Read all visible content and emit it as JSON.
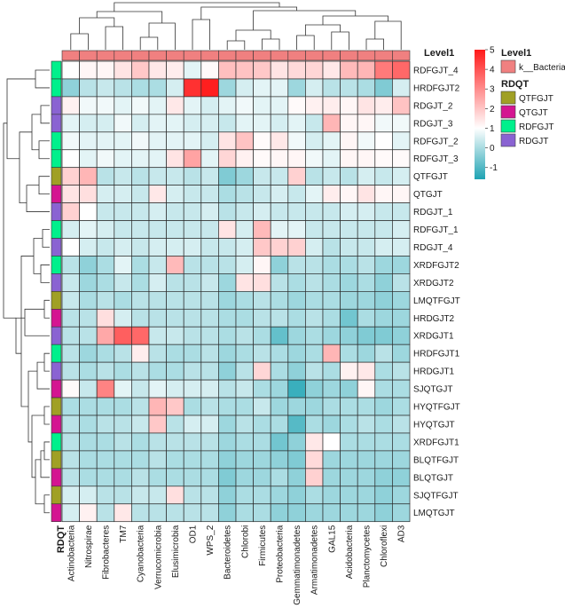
{
  "chart_data": {
    "type": "heatmap",
    "columns": [
      "Actinobacteria",
      "Nitrospirae",
      "Fibrobacteres",
      "TM7",
      "Cyanobacteria",
      "Verrucomicrobia",
      "Elusimicrobia",
      "OD1",
      "WPS_2",
      "Bacteroidetes",
      "Chlorobi",
      "Firmicutes",
      "Proteobacteria",
      "Gemmatimonadetes",
      "Armatimonadetes",
      "GAL15",
      "Acidobacteria",
      "Planctomycetes",
      "Chloroflexi",
      "AD3"
    ],
    "rows": [
      "RDFGJT_4",
      "HRDFGJT2",
      "RDGJT_2",
      "RDGJT_3",
      "RDFGJT_2",
      "RDFGJT_3",
      "QTFGJT",
      "QTGJT",
      "RDGJT_1",
      "RDFGJT_1",
      "RDGJT_4",
      "XRDFGJT2",
      "XRDGJT2",
      "LMQTFGJT",
      "HRDGJT2",
      "XRDGJT1",
      "HRDFGJT1",
      "HRDGJT1",
      "SJQTGJT",
      "HYQTFGJT",
      "HYQTGJT",
      "XRDFGJT1",
      "BLQTFGJT",
      "BLQTGJT",
      "SJQTFGJT",
      "LMQTGJT"
    ],
    "row_groups": [
      "RDFGJT",
      "RDFGJT",
      "RDGJT",
      "RDGJT",
      "RDFGJT",
      "RDFGJT",
      "QTFGJT",
      "QTGJT",
      "RDGJT",
      "RDFGJT",
      "RDGJT",
      "RDFGJT",
      "RDGJT",
      "QTFGJT",
      "QTGJT",
      "RDGJT",
      "RDFGJT",
      "RDGJT",
      "QTGJT",
      "QTFGJT",
      "QTGJT",
      "RDFGJT",
      "QTFGJT",
      "QTGJT",
      "QTFGJT",
      "QTGJT"
    ],
    "values": [
      [
        0.0,
        0.2,
        0.2,
        0.6,
        1.2,
        0.5,
        0.4,
        -0.2,
        0.1,
        1.4,
        1.3,
        1.2,
        0.6,
        0.8,
        0.9,
        0.5,
        1.5,
        1.6,
        2.9,
        3.3
      ],
      [
        -0.8,
        -0.5,
        -0.4,
        -0.5,
        -0.6,
        -0.6,
        -0.3,
        4.5,
        4.9,
        -0.7,
        -0.3,
        -0.2,
        -0.2,
        -0.7,
        -0.3,
        -0.5,
        -0.5,
        -0.6,
        -0.9,
        -0.3
      ],
      [
        0.3,
        -0.1,
        -0.1,
        -0.2,
        -0.1,
        -0.2,
        0.5,
        -0.2,
        -0.3,
        -0.2,
        -0.1,
        -0.2,
        -0.2,
        0.1,
        0.3,
        0.4,
        0.2,
        0.6,
        0.4,
        1.3
      ],
      [
        -0.2,
        -0.3,
        -0.3,
        -0.1,
        -0.3,
        -0.2,
        -0.2,
        -0.3,
        -0.3,
        -0.4,
        -0.2,
        -0.2,
        -0.3,
        -0.2,
        -0.4,
        1.6,
        0.2,
        0.2,
        -0.1,
        -0.1
      ],
      [
        -0.1,
        -0.2,
        -0.2,
        -0.2,
        -0.1,
        -0.2,
        -0.2,
        -0.2,
        -0.3,
        0.6,
        1.3,
        0.1,
        0.5,
        -0.1,
        -0.3,
        -0.2,
        0.2,
        -0.1,
        0.0,
        -0.2
      ],
      [
        0.0,
        -0.2,
        -0.1,
        -0.2,
        -0.2,
        -0.2,
        0.6,
        2.0,
        -0.2,
        0.9,
        0.3,
        0.1,
        0.2,
        0.2,
        -0.1,
        -0.2,
        0.2,
        0.2,
        0.1,
        0.1
      ],
      [
        1.0,
        1.6,
        -0.5,
        -0.4,
        -0.5,
        -0.4,
        -0.4,
        -0.5,
        -0.4,
        -0.9,
        -0.7,
        -0.4,
        -0.4,
        1.0,
        -0.5,
        -0.4,
        -0.5,
        -0.3,
        -0.4,
        -0.3
      ],
      [
        0.6,
        0.7,
        -0.3,
        -0.3,
        -0.4,
        0.5,
        -0.3,
        -0.4,
        -0.4,
        -0.6,
        -0.5,
        -0.4,
        -0.3,
        -0.4,
        -0.2,
        0.4,
        0.2,
        0.6,
        0.2,
        0.2
      ],
      [
        1.0,
        0.0,
        -0.4,
        -0.4,
        -0.4,
        -0.3,
        -0.4,
        -0.4,
        -0.3,
        -0.5,
        -0.4,
        -0.3,
        -0.4,
        -0.4,
        -0.4,
        -0.4,
        -0.3,
        -0.3,
        -0.4,
        -0.4
      ],
      [
        -0.3,
        -0.2,
        -0.3,
        -0.4,
        -0.4,
        -0.4,
        -0.4,
        -0.4,
        -0.4,
        0.6,
        -0.3,
        1.5,
        -0.2,
        -0.2,
        -0.4,
        -0.4,
        -0.4,
        -0.4,
        -0.4,
        -0.3
      ],
      [
        0.0,
        -0.3,
        -0.4,
        -0.3,
        -0.4,
        -0.3,
        -0.3,
        -0.3,
        -0.4,
        -0.4,
        -0.3,
        1.2,
        1.0,
        1.0,
        -0.3,
        -0.5,
        -0.4,
        -0.4,
        -0.3,
        -0.3
      ],
      [
        -0.5,
        -0.8,
        -0.6,
        -0.2,
        -0.6,
        -0.4,
        1.5,
        -0.5,
        -0.5,
        -0.5,
        -0.3,
        0.2,
        -0.8,
        -0.5,
        -0.5,
        -0.6,
        -0.6,
        -0.5,
        -0.7,
        -0.7
      ],
      [
        -0.4,
        -0.7,
        -0.6,
        -0.4,
        -0.6,
        -0.3,
        -0.5,
        -0.5,
        -0.4,
        -0.7,
        0.6,
        0.7,
        -0.5,
        -0.6,
        -0.5,
        -0.6,
        -0.7,
        -0.6,
        -0.8,
        -0.5
      ],
      [
        -0.4,
        -0.6,
        -0.5,
        -0.6,
        -0.5,
        -0.5,
        -0.5,
        -0.5,
        -0.5,
        -0.7,
        -0.6,
        -0.5,
        -0.6,
        -0.7,
        -0.6,
        -0.6,
        -0.7,
        -0.7,
        -0.8,
        -0.7
      ],
      [
        -0.5,
        -0.5,
        0.7,
        -0.3,
        -0.5,
        -0.5,
        -0.5,
        -0.5,
        -0.5,
        -0.6,
        -0.6,
        -0.5,
        -0.5,
        -0.6,
        -0.5,
        -0.6,
        -1.0,
        -0.6,
        -0.7,
        -0.7
      ],
      [
        -0.5,
        -0.5,
        1.9,
        3.5,
        3.3,
        -0.4,
        -0.4,
        -0.5,
        -0.5,
        -0.6,
        -0.5,
        -0.6,
        -1.1,
        -0.7,
        -0.6,
        -0.7,
        -0.8,
        -0.9,
        -0.9,
        -0.8
      ],
      [
        -0.5,
        -0.7,
        -0.6,
        -0.5,
        0.4,
        -0.5,
        -0.6,
        -0.6,
        -0.5,
        -0.7,
        -0.6,
        -0.5,
        -0.6,
        -0.7,
        -0.6,
        1.6,
        -0.6,
        -0.7,
        -0.5,
        -0.7
      ],
      [
        -0.5,
        -0.6,
        -0.5,
        -0.6,
        -0.5,
        -0.6,
        -0.6,
        -0.5,
        -0.5,
        -0.8,
        -0.5,
        0.9,
        -0.6,
        -0.8,
        -0.5,
        -0.6,
        0.3,
        0.5,
        -0.6,
        -0.5
      ],
      [
        0.1,
        -0.4,
        2.7,
        -0.2,
        -0.4,
        -0.2,
        -0.3,
        -0.3,
        -0.3,
        -0.5,
        -0.4,
        -0.6,
        -0.7,
        -1.4,
        -0.8,
        -0.7,
        -0.8,
        0.2,
        -0.6,
        -0.6
      ],
      [
        -0.6,
        -0.6,
        -0.6,
        -0.6,
        -0.5,
        1.6,
        1.2,
        -0.6,
        -0.5,
        -0.6,
        -0.6,
        -0.4,
        -0.7,
        -0.7,
        -0.7,
        -0.6,
        -0.6,
        -0.6,
        -0.7,
        -0.6
      ],
      [
        -0.5,
        -0.6,
        -0.5,
        -0.5,
        -0.4,
        1.2,
        -0.5,
        -0.3,
        -0.3,
        -0.7,
        -0.5,
        -0.6,
        -0.6,
        -1.2,
        -0.6,
        -0.7,
        -0.6,
        -0.5,
        -0.6,
        -0.5
      ],
      [
        -0.5,
        -0.6,
        -0.6,
        -0.5,
        -0.6,
        -0.5,
        -0.5,
        -0.5,
        -0.5,
        -0.7,
        -0.6,
        -0.6,
        -1.0,
        -0.8,
        0.5,
        0.0,
        -0.6,
        -0.6,
        -0.6,
        -0.6
      ],
      [
        -0.5,
        -0.6,
        -0.6,
        -0.6,
        -0.6,
        -0.5,
        -0.6,
        -0.6,
        -0.6,
        -0.8,
        -0.7,
        -0.7,
        -0.8,
        -0.9,
        0.8,
        -0.7,
        -0.7,
        -0.7,
        -0.7,
        -0.7
      ],
      [
        -0.5,
        -0.6,
        -0.6,
        -0.6,
        -0.5,
        -0.6,
        -0.6,
        -0.6,
        -0.6,
        -0.9,
        -0.7,
        -0.7,
        -0.6,
        -0.8,
        1.0,
        -0.7,
        -0.7,
        -0.7,
        -0.8,
        -0.8
      ],
      [
        -0.3,
        -0.3,
        -0.5,
        -0.5,
        -0.4,
        -0.4,
        0.7,
        -0.5,
        -0.5,
        -0.8,
        -0.6,
        -0.6,
        -0.7,
        -0.8,
        -0.6,
        -0.7,
        -0.7,
        -0.7,
        -0.8,
        -0.7
      ],
      [
        -0.3,
        0.3,
        -0.5,
        0.5,
        -0.5,
        -0.5,
        -0.5,
        -0.5,
        -0.5,
        -0.8,
        -0.6,
        -0.6,
        -0.8,
        -0.8,
        -0.7,
        -0.7,
        -0.7,
        -0.7,
        -0.8,
        -0.7
      ]
    ],
    "color_scale": {
      "ticks": [
        5,
        4,
        3,
        2,
        1,
        0,
        -1
      ],
      "min": -1.6,
      "max": 5.0,
      "low_color": "#1ea3b3",
      "mid_color": "#ffffff",
      "high_color": "#ff1a1a"
    },
    "column_annotation": {
      "title": "Level1",
      "entries": [
        {
          "label": "k__Bacteria",
          "color": "#f08080"
        }
      ]
    },
    "row_annotation": {
      "title": "RDQT",
      "entries": [
        {
          "label": "QTFGJT",
          "color": "#a0a025"
        },
        {
          "label": "QTGJT",
          "color": "#d41591"
        },
        {
          "label": "RDFGJT",
          "color": "#00f08c"
        },
        {
          "label": "RDGJT",
          "color": "#8a63d2"
        }
      ]
    },
    "grid": true
  }
}
